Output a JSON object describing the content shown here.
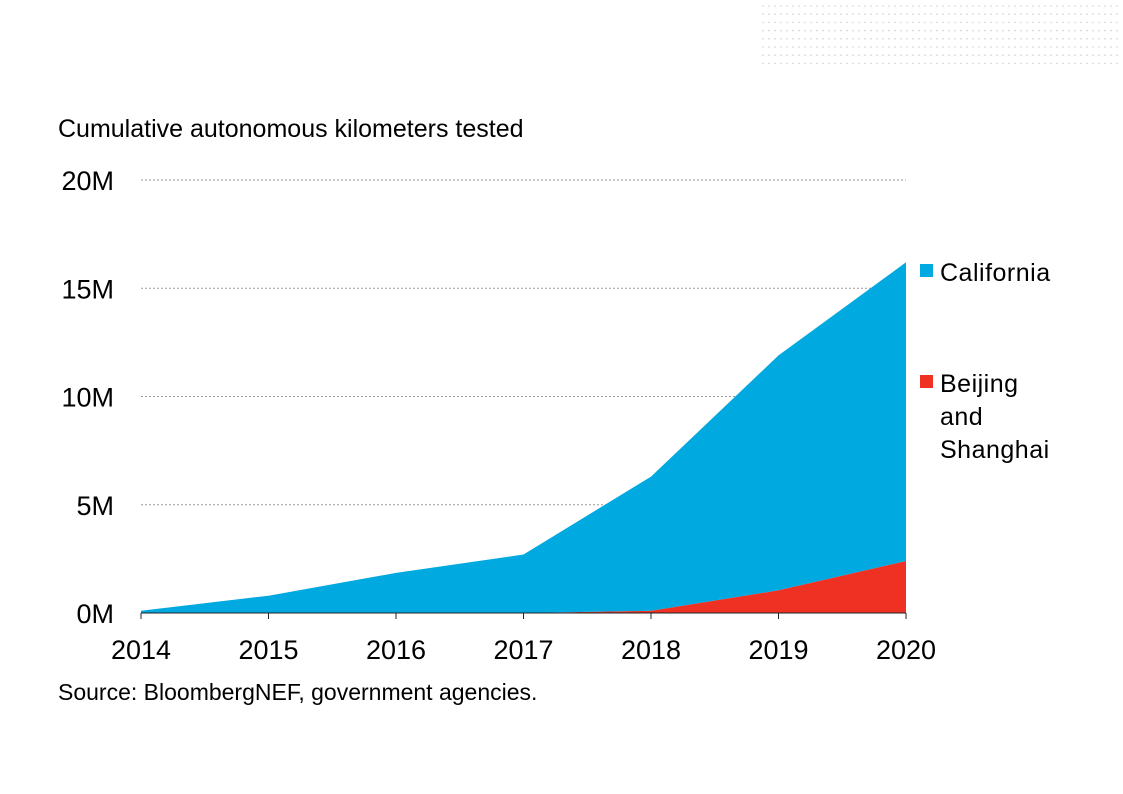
{
  "chart_data": {
    "type": "area",
    "title": "Cumulative autonomous kilometers tested",
    "source": "Source: BloombergNEF, government agencies.",
    "xlabel": "",
    "ylabel": "",
    "x": [
      "2014",
      "2015",
      "2016",
      "2017",
      "2018",
      "2019",
      "2020"
    ],
    "ylim": [
      0,
      20000000
    ],
    "yticks": [
      0,
      5000000,
      10000000,
      15000000,
      20000000
    ],
    "ytick_labels": [
      "0M",
      "5M",
      "10M",
      "15M",
      "20M"
    ],
    "grid": "horizontal dotted",
    "stacked": true,
    "legend_placement": "right",
    "series": [
      {
        "name": "Beijing and Shanghai",
        "legend_lines": [
          "Beijing",
          "and",
          "Shanghai"
        ],
        "color": "#ef3124",
        "values": [
          0,
          0,
          0,
          0,
          100000,
          1050000,
          2400000
        ]
      },
      {
        "name": "California",
        "legend_lines": [
          "California"
        ],
        "color": "#00a9e0",
        "values": [
          100000,
          800000,
          1850000,
          2700000,
          6200000,
          10850000,
          13800000
        ]
      }
    ]
  },
  "decoration": {
    "dot_grid_color": "#d0d0d0"
  }
}
